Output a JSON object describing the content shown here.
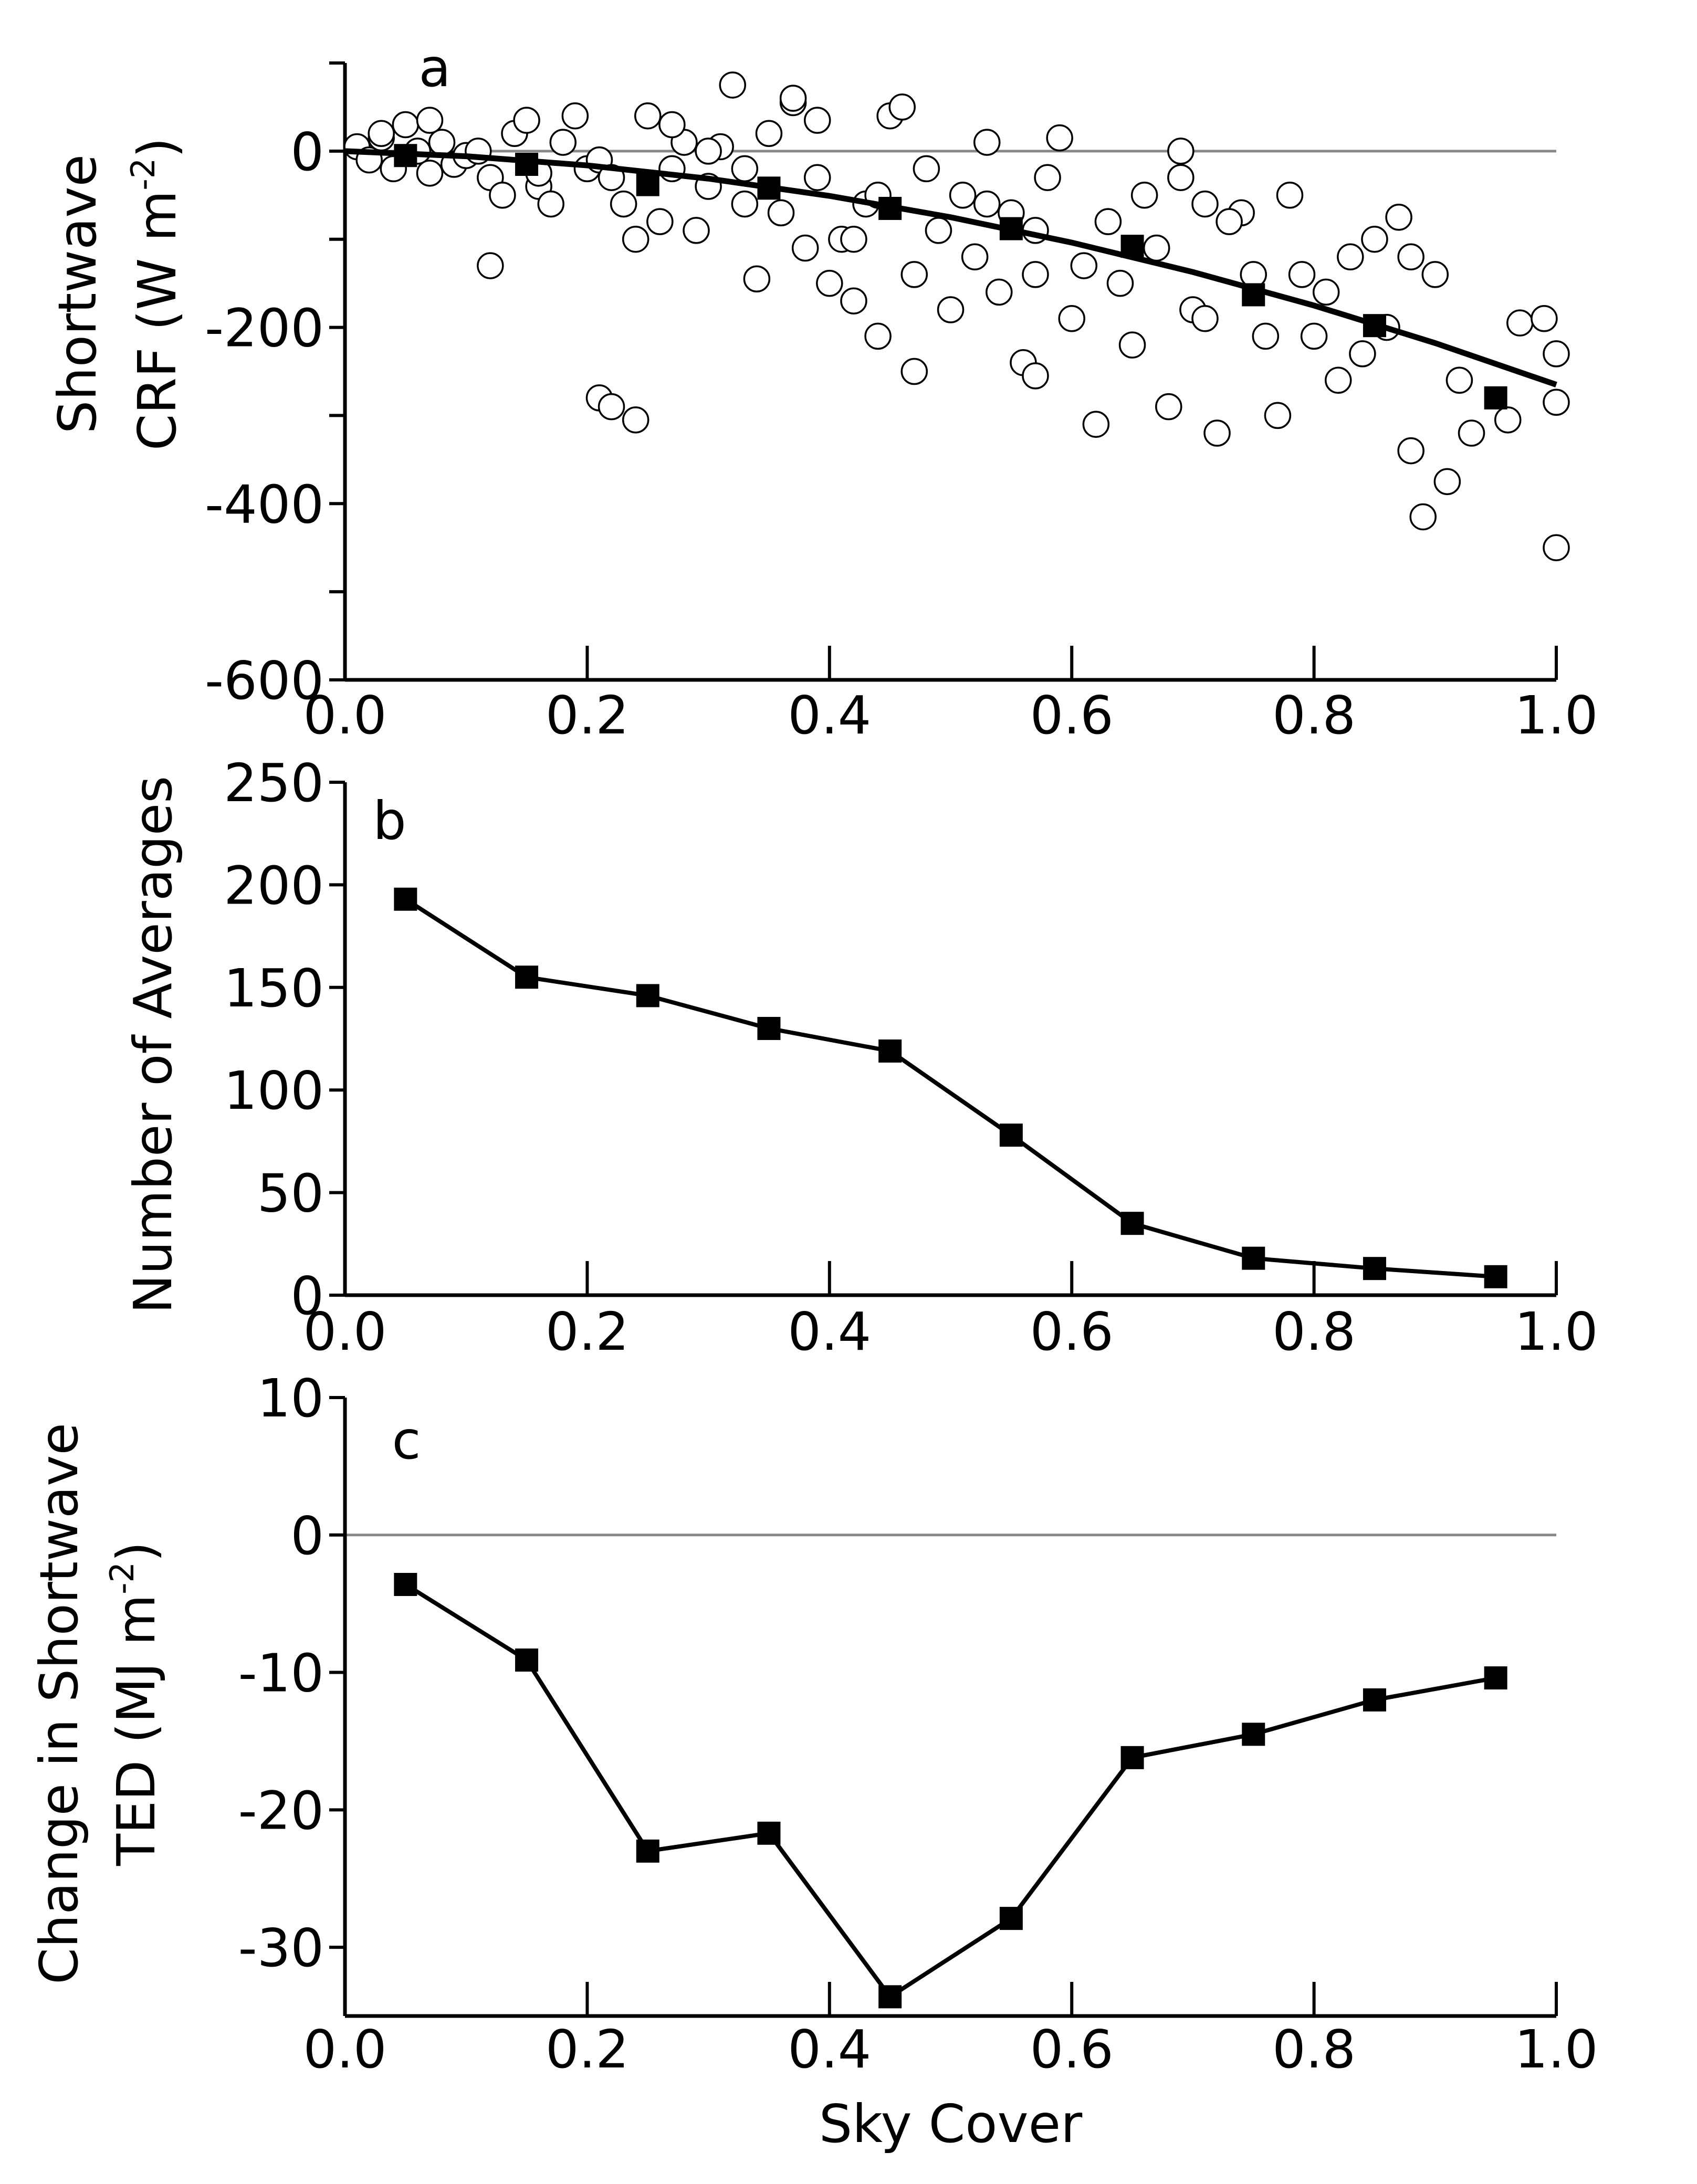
{
  "chart_data": [
    {
      "type": "scatter",
      "panel_label": "a",
      "ylabel": [
        {
          "text": "Shortwave"
        },
        {
          "text": "CRF (W m",
          "sup": "-2",
          "end": ")"
        }
      ],
      "xlim": [
        0,
        1
      ],
      "xticks": [
        {
          "value": 0,
          "label": "0.0"
        },
        0.2,
        0.4,
        0.6,
        0.8,
        {
          "value": 1,
          "label": "1.0"
        }
      ],
      "ylim": [
        -600,
        100
      ],
      "yticks": [
        0,
        -200,
        -400,
        -600
      ],
      "yminor": [
        100,
        -100,
        -300,
        -500
      ],
      "hline": 0,
      "scatter": {
        "x": [
          0.01,
          0.02,
          0.03,
          0.04,
          0.05,
          0.06,
          0.07,
          0.08,
          0.09,
          0.1,
          0.11,
          0.12,
          0.13,
          0.14,
          0.15,
          0.16,
          0.17,
          0.18,
          0.19,
          0.2,
          0.21,
          0.22,
          0.23,
          0.24,
          0.25,
          0.26,
          0.27,
          0.28,
          0.29,
          0.3,
          0.31,
          0.32,
          0.33,
          0.34,
          0.35,
          0.36,
          0.37,
          0.38,
          0.39,
          0.4,
          0.41,
          0.42,
          0.43,
          0.44,
          0.45,
          0.46,
          0.47,
          0.48,
          0.49,
          0.5,
          0.51,
          0.52,
          0.53,
          0.54,
          0.55,
          0.56,
          0.57,
          0.58,
          0.59,
          0.6,
          0.62,
          0.63,
          0.64,
          0.66,
          0.68,
          0.69,
          0.7,
          0.71,
          0.72,
          0.74,
          0.75,
          0.76,
          0.77,
          0.78,
          0.79,
          0.8,
          0.82,
          0.83,
          0.85,
          0.86,
          0.87,
          0.88,
          0.89,
          0.9,
          0.91,
          0.92,
          0.93,
          0.96,
          0.97,
          0.99,
          1.0,
          1.0,
          1.0,
          0.12,
          0.21,
          0.22,
          0.24,
          0.03,
          0.07,
          0.16,
          0.27,
          0.33,
          0.37,
          0.39,
          0.42,
          0.44,
          0.47,
          0.53,
          0.57,
          0.61,
          0.65,
          0.67,
          0.69,
          0.71,
          0.73,
          0.81,
          0.84,
          0.88,
          0.57,
          0.3
        ],
        "values": [
          5,
          -10,
          15,
          -20,
          30,
          0,
          -25,
          10,
          -15,
          -5,
          0,
          -30,
          -50,
          20,
          35,
          -40,
          -60,
          10,
          40,
          -20,
          -10,
          -30,
          -60,
          -100,
          40,
          -80,
          -20,
          10,
          -90,
          -40,
          5,
          75,
          -60,
          -145,
          20,
          -70,
          55,
          -110,
          -30,
          -150,
          -100,
          -170,
          -60,
          -210,
          40,
          50,
          -140,
          -20,
          -90,
          -180,
          -50,
          -120,
          10,
          -160,
          -70,
          -240,
          -140,
          -30,
          15,
          -190,
          -310,
          -80,
          -150,
          -50,
          -290,
          0,
          -180,
          -60,
          -320,
          -70,
          -140,
          -210,
          -300,
          -50,
          -140,
          -210,
          -260,
          -120,
          -100,
          -200,
          -75,
          -120,
          -415,
          -140,
          -375,
          -260,
          -320,
          -305,
          -195,
          -190,
          -230,
          -285,
          -450,
          -130,
          -280,
          -290,
          -305,
          20,
          35,
          -25,
          30,
          -20,
          60,
          35,
          -100,
          -50,
          -250,
          -60,
          -90,
          -130,
          -220,
          -110,
          -30,
          -190,
          -80,
          -160,
          -230,
          -340,
          -255,
          0
        ]
      },
      "fit": {
        "x": [
          0,
          0.1,
          0.2,
          0.3,
          0.4,
          0.5,
          0.6,
          0.7,
          0.8,
          0.9,
          1.0
        ],
        "values": [
          0,
          -5.8,
          -16.2,
          -31.2,
          -50.8,
          -75,
          -103.8,
          -137.2,
          -175.2,
          -217.8,
          -265
        ]
      },
      "means": {
        "x": [
          0.05,
          0.15,
          0.25,
          0.35,
          0.45,
          0.55,
          0.65,
          0.75,
          0.85,
          0.95
        ],
        "values": [
          -5,
          -15,
          -38,
          -42,
          -65,
          -88,
          -108,
          -163,
          -198,
          -280
        ]
      }
    },
    {
      "type": "line",
      "panel_label": "b",
      "ylabel": [
        {
          "text": "Number of Averages"
        }
      ],
      "xlim": [
        0,
        1
      ],
      "xticks": [
        {
          "value": 0,
          "label": "0.0"
        },
        0.2,
        0.4,
        0.6,
        0.8,
        {
          "value": 1,
          "label": "1.0"
        }
      ],
      "ylim": [
        0,
        250
      ],
      "yticks": [
        0,
        50,
        100,
        150,
        200,
        250
      ],
      "x": [
        0.05,
        0.15,
        0.25,
        0.35,
        0.45,
        0.55,
        0.65,
        0.75,
        0.85,
        0.95
      ],
      "values": [
        193,
        155,
        146,
        130,
        119,
        78,
        35,
        18,
        13,
        9
      ]
    },
    {
      "type": "line",
      "panel_label": "c",
      "ylabel": [
        {
          "text": "Change in Shortwave"
        },
        {
          "text": "TED (MJ m",
          "sup": "-2",
          "end": ")"
        }
      ],
      "xlabel": "Sky Cover",
      "xlim": [
        0,
        1
      ],
      "xticks": [
        {
          "value": 0,
          "label": "0.0"
        },
        0.2,
        0.4,
        0.6,
        0.8,
        {
          "value": 1,
          "label": "1.0"
        }
      ],
      "ylim": [
        -35,
        10
      ],
      "yticks": [
        10,
        0,
        -10,
        -20,
        -30
      ],
      "hline": 0,
      "x": [
        0.05,
        0.15,
        0.25,
        0.35,
        0.45,
        0.55,
        0.65,
        0.75,
        0.85,
        0.95
      ],
      "values": [
        -3.6,
        -9.1,
        -23,
        -21.7,
        -33.6,
        -27.9,
        -16.2,
        -14.5,
        -12,
        -10.4
      ]
    }
  ]
}
